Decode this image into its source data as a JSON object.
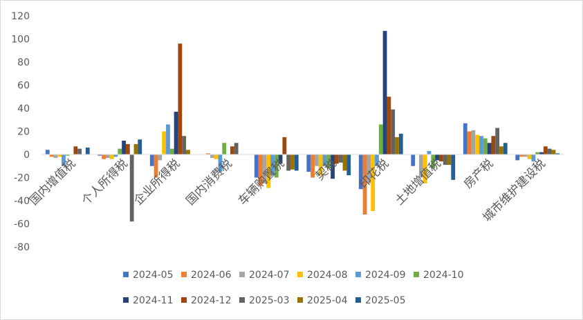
{
  "chart_data": {
    "type": "bar",
    "categories": [
      "国内增值税",
      "个人所得税",
      "企业所得税",
      "国内消费税",
      "车辆购置税",
      "契税",
      "印花税",
      "土地增值税",
      "房产税",
      "城市维护建设税"
    ],
    "series": [
      {
        "name": "2024-05",
        "color": "#4472C4",
        "values": [
          4,
          -1,
          -10,
          0,
          -20,
          -15,
          -30,
          -10,
          27,
          -5
        ]
      },
      {
        "name": "2024-06",
        "color": "#ED7D31",
        "values": [
          -2,
          -4,
          -20,
          1,
          -27,
          -20,
          -52,
          0,
          20,
          -2
        ]
      },
      {
        "name": "2024-07",
        "color": "#A5A5A5",
        "values": [
          -3,
          -3,
          -5,
          -3,
          -25,
          -10,
          -25,
          -20,
          21,
          -2
        ]
      },
      {
        "name": "2024-08",
        "color": "#FFC000",
        "values": [
          -2,
          -4,
          20,
          -4,
          -29,
          -18,
          -49,
          -25,
          17,
          -4
        ]
      },
      {
        "name": "2024-09",
        "color": "#5B9BD5",
        "values": [
          -10,
          -2,
          26,
          -15,
          -18,
          -10,
          -10,
          3,
          16,
          -6
        ]
      },
      {
        "name": "2024-10",
        "color": "#70AD47",
        "values": [
          -1,
          5,
          5,
          10,
          -20,
          -12,
          26,
          -12,
          14,
          2
        ]
      },
      {
        "name": "2024-11",
        "color": "#264478",
        "values": [
          0,
          12,
          37,
          0,
          -8,
          -21,
          107,
          -5,
          10,
          2
        ]
      },
      {
        "name": "2024-12",
        "color": "#9E480E",
        "values": [
          7,
          9,
          96,
          7,
          15,
          -8,
          50,
          -6,
          16,
          7
        ]
      },
      {
        "name": "2025-03",
        "color": "#636363",
        "values": [
          5,
          -58,
          16,
          10,
          -14,
          -7,
          39,
          -9,
          23,
          5
        ]
      },
      {
        "name": "2025-04",
        "color": "#997300",
        "values": [
          0,
          9,
          4,
          0,
          -13,
          -14,
          15,
          -9,
          7,
          4
        ]
      },
      {
        "name": "2025-05",
        "color": "#255E91",
        "values": [
          6,
          13,
          0,
          0,
          -14,
          -18,
          18,
          -22,
          10,
          1
        ]
      }
    ],
    "ylim": [
      -80,
      120
    ],
    "yticks": [
      "120",
      "100",
      "80",
      "60",
      "40",
      "20",
      "0",
      "-20",
      "-40",
      "-60",
      "-80"
    ],
    "grid": false,
    "legend": "bottom",
    "title": "",
    "xlabel": "",
    "ylabel": ""
  }
}
